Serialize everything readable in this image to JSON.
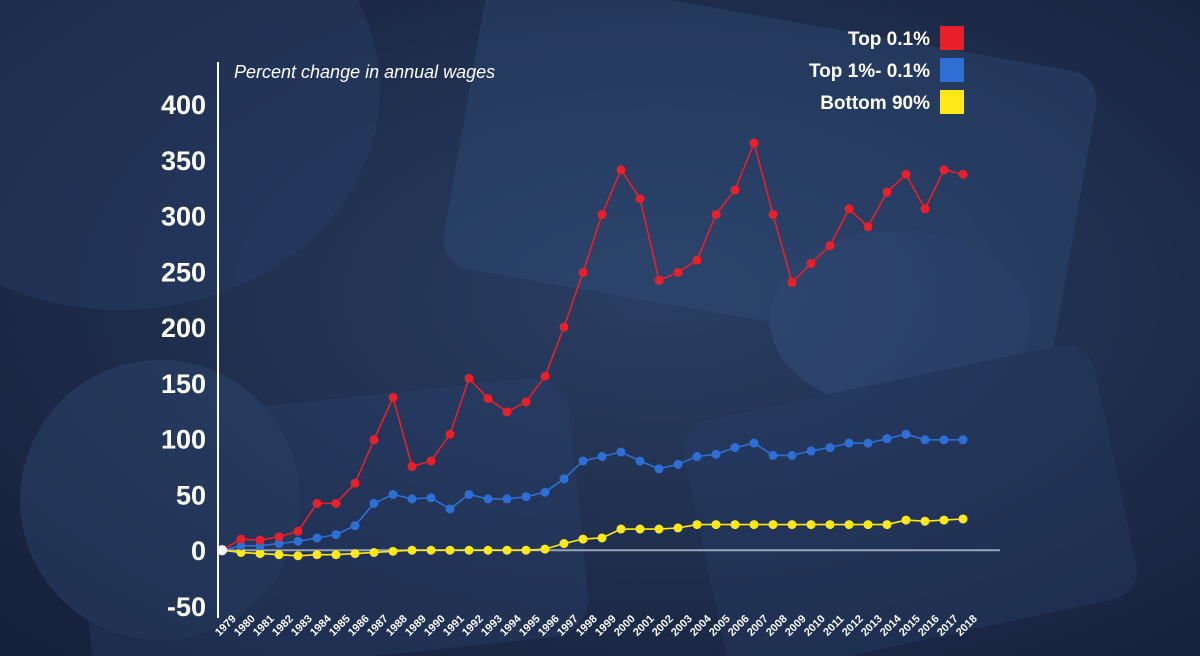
{
  "chart_data": {
    "type": "line",
    "subtitle": "Percent change in annual wages",
    "xlabel": "",
    "ylabel": "",
    "ylim": [
      -50,
      400
    ],
    "yticks": [
      400,
      350,
      300,
      250,
      200,
      150,
      100,
      50,
      0,
      -50
    ],
    "categories": [
      "1979",
      "1980",
      "1981",
      "1982",
      "1983",
      "1984",
      "1985",
      "1986",
      "1987",
      "1988",
      "1989",
      "1990",
      "1991",
      "1992",
      "1993",
      "1994",
      "1995",
      "1996",
      "1997",
      "1998",
      "1999",
      "2000",
      "2001",
      "2002",
      "2003",
      "2004",
      "2005",
      "2006",
      "2007",
      "2008",
      "2009",
      "2010",
      "2011",
      "2012",
      "2013",
      "2014",
      "2015",
      "2016",
      "2017",
      "2018"
    ],
    "legend_position": "top-right",
    "grid": false,
    "series": [
      {
        "name": "Top 0.1%",
        "color": "#e8202a",
        "values": [
          0,
          10,
          9,
          12,
          17,
          42,
          42,
          60,
          99,
          137,
          75,
          80,
          104,
          154,
          136,
          124,
          133,
          156,
          200,
          249,
          301,
          341,
          315,
          242,
          249,
          260,
          301,
          323,
          365,
          301,
          240,
          257,
          273,
          306,
          290,
          321,
          337,
          306,
          341,
          337
        ]
      },
      {
        "name": "Top 1%- 0.1%",
        "color": "#2e6fd6",
        "values": [
          0,
          4,
          4,
          6,
          8,
          11,
          14,
          22,
          42,
          50,
          46,
          47,
          37,
          50,
          46,
          46,
          48,
          52,
          64,
          80,
          84,
          88,
          80,
          73,
          77,
          84,
          86,
          92,
          96,
          85,
          85,
          89,
          92,
          96,
          96,
          100,
          104,
          99,
          99,
          99
        ]
      },
      {
        "name": "Bottom 90%",
        "color": "#ffe817",
        "values": [
          0,
          -2,
          -3,
          -4,
          -5,
          -4,
          -4,
          -3,
          -2,
          -1,
          0,
          0,
          0,
          0,
          0,
          0,
          0,
          1,
          6,
          10,
          11,
          19,
          19,
          19,
          20,
          23,
          23,
          23,
          23,
          23,
          23,
          23,
          23,
          23,
          23,
          23,
          27,
          26,
          27,
          28
        ]
      }
    ]
  }
}
